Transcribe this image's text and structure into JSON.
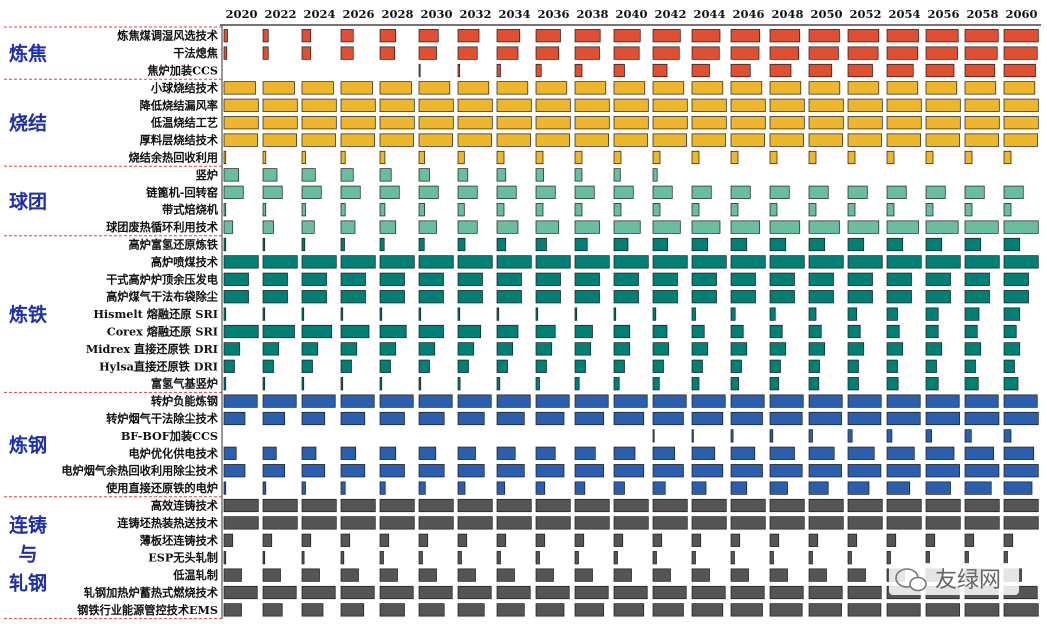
{
  "colors": {
    "炼焦": "#e05030",
    "烧结": "#efb62b",
    "球团": "#69bf9d",
    "炼铁": "#008074",
    "炼钢": "#2b5fae",
    "连铸与轧钢": "#555555",
    "group_label": "#1e2fa8",
    "divider": "#e04040"
  },
  "watermark": {
    "text": "友绿网",
    "icon": "wechat-icon"
  },
  "chart_data": {
    "type": "heatmap",
    "title": "",
    "encoding": "bar width within each 2-year cell = relative level (0-1)",
    "years": [
      "2020",
      "2022",
      "2024",
      "2026",
      "2028",
      "2030",
      "2032",
      "2034",
      "2036",
      "2038",
      "2040",
      "2042",
      "2044",
      "2046",
      "2048",
      "2050",
      "2052",
      "2054",
      "2056",
      "2058",
      "2060"
    ],
    "groups": [
      {
        "name": "炼焦",
        "color": "#e05030",
        "rows": [
          {
            "label": "炼焦煤调湿风选技术",
            "values": [
              0.1,
              0.15,
              0.25,
              0.35,
              0.45,
              0.55,
              0.6,
              0.65,
              0.7,
              0.72,
              0.75,
              0.78,
              0.8,
              0.82,
              0.85,
              0.87,
              0.88,
              0.9,
              0.92,
              0.95,
              0.98
            ]
          },
          {
            "label": "干法熄焦",
            "values": [
              0.08,
              0.15,
              0.25,
              0.35,
              0.42,
              0.5,
              0.55,
              0.6,
              0.65,
              0.7,
              0.72,
              0.75,
              0.78,
              0.8,
              0.82,
              0.84,
              0.86,
              0.88,
              0.9,
              0.92,
              0.95
            ]
          },
          {
            "label": "焦炉加装CCS",
            "values": [
              0,
              0,
              0,
              0,
              0,
              0.02,
              0.05,
              0.1,
              0.15,
              0.2,
              0.3,
              0.4,
              0.5,
              0.55,
              0.6,
              0.65,
              0.7,
              0.75,
              0.8,
              0.85,
              0.9
            ]
          }
        ]
      },
      {
        "name": "烧结",
        "color": "#efb62b",
        "rows": [
          {
            "label": "小球烧结技术",
            "values": [
              0.9,
              0.9,
              0.9,
              0.9,
              0.9,
              0.88,
              0.88,
              0.88,
              0.88,
              0.88,
              0.88,
              0.88,
              0.88,
              0.88,
              0.88,
              0.88,
              0.88,
              0.88,
              0.88,
              0.88,
              0.88
            ]
          },
          {
            "label": "降低烧结漏风率",
            "values": [
              0.98,
              0.98,
              0.98,
              0.98,
              0.98,
              0.98,
              0.98,
              0.98,
              0.98,
              0.98,
              0.98,
              0.98,
              0.98,
              0.98,
              0.98,
              0.98,
              0.98,
              0.98,
              0.98,
              0.98,
              0.98
            ]
          },
          {
            "label": "低温烧结工艺",
            "values": [
              0.98,
              0.98,
              0.98,
              0.98,
              0.98,
              0.98,
              0.98,
              0.98,
              0.98,
              0.98,
              0.98,
              0.98,
              0.98,
              0.98,
              0.98,
              0.98,
              0.98,
              0.98,
              0.98,
              0.98,
              0.98
            ]
          },
          {
            "label": "厚料层烧结技术",
            "values": [
              0.96,
              0.96,
              0.96,
              0.96,
              0.96,
              0.96,
              0.96,
              0.96,
              0.96,
              0.96,
              0.96,
              0.96,
              0.96,
              0.96,
              0.96,
              0.96,
              0.96,
              0.96,
              0.96,
              0.96,
              0.96
            ]
          },
          {
            "label": "烧结余热回收利用",
            "values": [
              0.05,
              0.08,
              0.1,
              0.12,
              0.14,
              0.16,
              0.18,
              0.2,
              0.2,
              0.2,
              0.2,
              0.2,
              0.2,
              0.2,
              0.2,
              0.2,
              0.2,
              0.2,
              0.2,
              0.2,
              0.2
            ]
          }
        ]
      },
      {
        "name": "球团",
        "color": "#69bf9d",
        "rows": [
          {
            "label": "竖炉",
            "values": [
              0.42,
              0.4,
              0.38,
              0.35,
              0.32,
              0.3,
              0.28,
              0.25,
              0.22,
              0.2,
              0.18,
              0.12,
              0,
              0,
              0,
              0,
              0,
              0,
              0,
              0,
              0
            ]
          },
          {
            "label": "链篦机-回转窑",
            "values": [
              0.55,
              0.55,
              0.55,
              0.55,
              0.55,
              0.55,
              0.55,
              0.55,
              0.55,
              0.55,
              0.55,
              0.55,
              0.55,
              0.55,
              0.55,
              0.55,
              0.55,
              0.55,
              0.55,
              0.55,
              0.55
            ]
          },
          {
            "label": "带式焙烧机",
            "values": [
              0.05,
              0.08,
              0.1,
              0.12,
              0.14,
              0.16,
              0.18,
              0.2,
              0.2,
              0.2,
              0.2,
              0.2,
              0.2,
              0.2,
              0.2,
              0.2,
              0.2,
              0.2,
              0.2,
              0.2,
              0.2
            ]
          },
          {
            "label": "球团废热循环利用技术",
            "values": [
              0.25,
              0.3,
              0.35,
              0.4,
              0.45,
              0.5,
              0.55,
              0.6,
              0.65,
              0.7,
              0.75,
              0.78,
              0.8,
              0.82,
              0.85,
              0.87,
              0.88,
              0.9,
              0.92,
              0.95,
              0.98
            ]
          }
        ]
      },
      {
        "name": "炼铁",
        "color": "#008074",
        "rows": [
          {
            "label": "高炉富氢还原炼铁",
            "values": [
              0.05,
              0.05,
              0.08,
              0.1,
              0.12,
              0.15,
              0.2,
              0.25,
              0.3,
              0.35,
              0.4,
              0.42,
              0.45,
              0.45,
              0.45,
              0.45,
              0.45,
              0.45,
              0.45,
              0.45,
              0.45
            ]
          },
          {
            "label": "高炉喷煤技术",
            "values": [
              0.98,
              0.98,
              0.98,
              0.98,
              0.98,
              0.98,
              0.98,
              0.98,
              0.98,
              0.98,
              0.98,
              0.98,
              0.98,
              0.98,
              0.98,
              0.98,
              0.98,
              0.98,
              0.98,
              0.98,
              0.98
            ]
          },
          {
            "label": "干式高炉炉顶余压发电",
            "values": [
              0.7,
              0.7,
              0.7,
              0.7,
              0.7,
              0.7,
              0.7,
              0.7,
              0.7,
              0.7,
              0.7,
              0.7,
              0.7,
              0.7,
              0.7,
              0.7,
              0.7,
              0.7,
              0.7,
              0.7,
              0.7
            ]
          },
          {
            "label": "高炉煤气干法布袋除尘",
            "values": [
              0.7,
              0.7,
              0.7,
              0.7,
              0.7,
              0.7,
              0.7,
              0.7,
              0.7,
              0.7,
              0.7,
              0.7,
              0.7,
              0.7,
              0.7,
              0.7,
              0.7,
              0.7,
              0.7,
              0.7,
              0.7
            ]
          },
          {
            "label": "Hismelt 熔融还原 SRI",
            "values": [
              0.05,
              0.05,
              0.05,
              0.05,
              0.05,
              0.05,
              0.05,
              0.05,
              0.05,
              0.05,
              0.05,
              0.08,
              0.1,
              0.12,
              0.15,
              0.2,
              0.25,
              0.3,
              0.35,
              0.4,
              0.45
            ]
          },
          {
            "label": "Corex 熔融还原 SRI",
            "values": [
              0.98,
              0.9,
              0.85,
              0.8,
              0.75,
              0.7,
              0.65,
              0.6,
              0.55,
              0.5,
              0.45,
              0.4,
              0.35,
              0.35,
              0.35,
              0.35,
              0.35,
              0.35,
              0.35,
              0.35,
              0.35
            ]
          },
          {
            "label": "Midrex 直接还原铁 DRI",
            "values": [
              0.45,
              0.45,
              0.45,
              0.45,
              0.45,
              0.45,
              0.45,
              0.45,
              0.45,
              0.45,
              0.45,
              0.45,
              0.45,
              0.45,
              0.45,
              0.45,
              0.45,
              0.45,
              0.45,
              0.45,
              0.45
            ]
          },
          {
            "label": "Hylsa直接还原铁 DRI",
            "values": [
              0.3,
              0.3,
              0.3,
              0.3,
              0.3,
              0.3,
              0.3,
              0.3,
              0.3,
              0.3,
              0.3,
              0.3,
              0.3,
              0.3,
              0.3,
              0.3,
              0.3,
              0.3,
              0.3,
              0.3,
              0.3
            ]
          },
          {
            "label": "富氢气基竖炉",
            "values": [
              0.05,
              0.05,
              0.05,
              0.05,
              0.05,
              0.05,
              0.06,
              0.08,
              0.1,
              0.12,
              0.15,
              0.18,
              0.2,
              0.22,
              0.25,
              0.28,
              0.3,
              0.32,
              0.35,
              0.38,
              0.4
            ]
          }
        ]
      },
      {
        "name": "炼钢",
        "color": "#2b5fae",
        "rows": [
          {
            "label": "转炉负能炼钢",
            "values": [
              0.95,
              0.95,
              0.95,
              0.95,
              0.95,
              0.95,
              0.95,
              0.95,
              0.95,
              0.95,
              0.95,
              0.95,
              0.95,
              0.95,
              0.95,
              0.95,
              0.95,
              0.95,
              0.95,
              0.95,
              0.95
            ]
          },
          {
            "label": "转炉烟气干法除尘技术",
            "values": [
              0.6,
              0.62,
              0.65,
              0.68,
              0.7,
              0.72,
              0.75,
              0.78,
              0.8,
              0.82,
              0.85,
              0.87,
              0.88,
              0.9,
              0.92,
              0.93,
              0.94,
              0.95,
              0.96,
              0.97,
              0.98
            ]
          },
          {
            "label": "BF-BOF加装CCS",
            "values": [
              0,
              0,
              0,
              0,
              0,
              0,
              0,
              0,
              0,
              0,
              0,
              0.02,
              0.04,
              0.06,
              0.08,
              0.1,
              0.12,
              0.14,
              0.16,
              0.18,
              0.2
            ]
          },
          {
            "label": "电炉优化供电技术",
            "values": [
              0.35,
              0.38,
              0.4,
              0.42,
              0.45,
              0.48,
              0.5,
              0.52,
              0.55,
              0.58,
              0.6,
              0.62,
              0.65,
              0.68,
              0.7,
              0.72,
              0.75,
              0.78,
              0.8,
              0.82,
              0.85
            ]
          },
          {
            "label": "电炉烟气余热回收利用除尘技术",
            "values": [
              0.6,
              0.62,
              0.65,
              0.68,
              0.7,
              0.72,
              0.75,
              0.78,
              0.8,
              0.82,
              0.85,
              0.87,
              0.88,
              0.9,
              0.92,
              0.93,
              0.94,
              0.95,
              0.96,
              0.97,
              0.98
            ]
          },
          {
            "label": "使用直接还原铁的电炉",
            "values": [
              0.05,
              0.08,
              0.1,
              0.12,
              0.15,
              0.18,
              0.2,
              0.22,
              0.25,
              0.28,
              0.3,
              0.35,
              0.4,
              0.45,
              0.5,
              0.55,
              0.6,
              0.65,
              0.7,
              0.75,
              0.8
            ]
          }
        ]
      },
      {
        "name": "连铸与轧钢",
        "color": "#555555",
        "rows": [
          {
            "label": "高效连铸技术",
            "values": [
              0.98,
              0.98,
              0.98,
              0.98,
              0.98,
              0.98,
              0.98,
              0.98,
              0.98,
              0.98,
              0.98,
              0.98,
              0.98,
              0.98,
              0.98,
              0.98,
              0.98,
              0.98,
              0.98,
              0.98,
              0.98
            ]
          },
          {
            "label": "连铸坯热装热送技术",
            "values": [
              0.98,
              0.98,
              0.98,
              0.98,
              0.98,
              0.98,
              0.98,
              0.98,
              0.98,
              0.98,
              0.98,
              0.98,
              0.98,
              0.98,
              0.98,
              0.98,
              0.98,
              0.98,
              0.98,
              0.98,
              0.98
            ]
          },
          {
            "label": "薄板坯连铸技术",
            "values": [
              0.25,
              0.25,
              0.25,
              0.25,
              0.25,
              0.25,
              0.25,
              0.25,
              0.25,
              0.25,
              0.25,
              0.25,
              0.25,
              0.25,
              0.25,
              0.25,
              0.25,
              0.25,
              0.25,
              0.25,
              0.25
            ]
          },
          {
            "label": "ESP无头轧制",
            "values": [
              0.05,
              0.05,
              0.06,
              0.08,
              0.1,
              0.1,
              0.1,
              0.1,
              0.1,
              0.1,
              0.1,
              0.1,
              0.1,
              0.1,
              0.1,
              0.1,
              0.1,
              0.1,
              0.1,
              0.1,
              0.1
            ]
          },
          {
            "label": "低温轧制",
            "values": [
              0.5,
              0.5,
              0.5,
              0.5,
              0.5,
              0.5,
              0.5,
              0.5,
              0.5,
              0.5,
              0.5,
              0.5,
              0.5,
              0.5,
              0.5,
              0.5,
              0.5,
              0.5,
              0.5,
              0.5,
              0.5
            ]
          },
          {
            "label": "轧钢加热炉蓄热式燃烧技术",
            "values": [
              0.95,
              0.95,
              0.95,
              0.95,
              0.95,
              0.95,
              0.95,
              0.95,
              0.95,
              0.95,
              0.95,
              0.95,
              0.95,
              0.95,
              0.95,
              0.95,
              0.95,
              0.95,
              0.95,
              0.95,
              0.95
            ]
          },
          {
            "label": "钢铁行业能源管控技术EMS",
            "values": [
              0.5,
              0.55,
              0.6,
              0.65,
              0.7,
              0.72,
              0.75,
              0.78,
              0.8,
              0.82,
              0.85,
              0.87,
              0.88,
              0.9,
              0.92,
              0.93,
              0.94,
              0.95,
              0.96,
              0.97,
              0.98
            ]
          }
        ]
      }
    ]
  }
}
